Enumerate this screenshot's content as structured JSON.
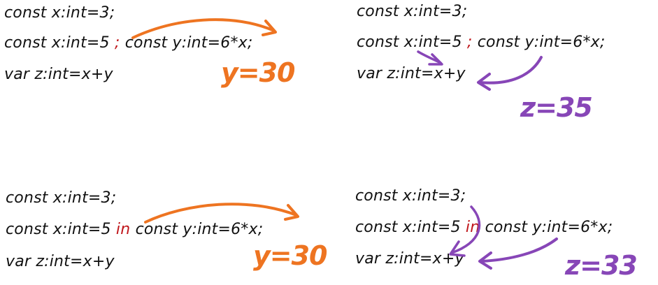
{
  "colors": {
    "orange": "#ee7421",
    "purple": "#8746b7",
    "sep_red": "#c0161b"
  },
  "panels": {
    "top_left": {
      "line1": "const x:int=3;",
      "line2_pre": "const x:int=5 ",
      "sep": ";",
      "line2_post": " const y:int=6*x;",
      "line3": "var z:int=x+y",
      "result": "y=30"
    },
    "top_right": {
      "line1": "const x:int=3;",
      "line2_pre": "const x:int=5 ",
      "sep": ";",
      "line2_post": " const y:int=6*x;",
      "line3": "var z:int=x+y",
      "result": "z=35"
    },
    "bottom_left": {
      "line1": "const x:int=3;",
      "line2_pre": "const x:int=5 ",
      "sep": "in",
      "line2_post": " const y:int=6*x;",
      "line3": "var z:int=x+y",
      "result": "y=30"
    },
    "bottom_right": {
      "line1": "const x:int=3;",
      "line2_pre": "const x:int=5 ",
      "sep": "in",
      "line2_post": " const y:int=6*x;",
      "line3": "var z:int=x+y",
      "result": "z=33"
    }
  }
}
